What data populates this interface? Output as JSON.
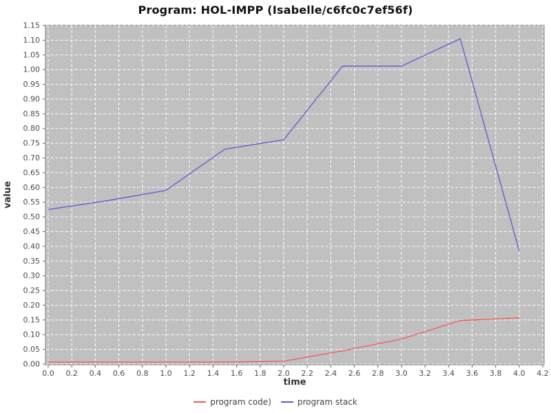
{
  "window": {
    "background": "#ffffff"
  },
  "chart_data": {
    "type": "line",
    "title": "Program: HOL-IMPP (Isabelle/c6fc0c7ef56f)",
    "xlabel": "time",
    "ylabel": "value",
    "xlim": [
      0.0,
      4.2
    ],
    "ylim": [
      0.0,
      1.15
    ],
    "grid": true,
    "legend_position": "bottom",
    "plot_background": "#c0c0c0",
    "grid_color": "#ffffff",
    "x_ticks": [
      0.0,
      0.2,
      0.4,
      0.6,
      0.8,
      1.0,
      1.2,
      1.4,
      1.6,
      1.8,
      2.0,
      2.2,
      2.4,
      2.6,
      2.8,
      3.0,
      3.2,
      3.4,
      3.6,
      3.8,
      4.0,
      4.2
    ],
    "x_tick_labels": [
      "0.0",
      "0.2",
      "0.4",
      "0.6",
      "0.8",
      "1.0",
      "1.2",
      "1.4",
      "1.6",
      "1.8",
      "2.0",
      "2.2",
      "2.4",
      "2.6",
      "2.8",
      "3.0",
      "3.2",
      "3.4",
      "3.6",
      "3.8",
      "4.0",
      "4.2"
    ],
    "y_ticks": [
      0.0,
      0.05,
      0.1,
      0.15,
      0.2,
      0.25,
      0.3,
      0.35,
      0.4,
      0.45,
      0.5,
      0.55,
      0.6,
      0.65,
      0.7,
      0.75,
      0.8,
      0.85,
      0.9,
      0.95,
      1.0,
      1.05,
      1.1,
      1.15
    ],
    "y_tick_labels": [
      "0.00",
      "0.05",
      "0.10",
      "0.15",
      "0.20",
      "0.25",
      "0.30",
      "0.35",
      "0.40",
      "0.45",
      "0.50",
      "0.55",
      "0.60",
      "0.65",
      "0.70",
      "0.75",
      "0.80",
      "0.85",
      "0.90",
      "0.95",
      "1.00",
      "1.05",
      "1.10",
      "1.15"
    ],
    "series": [
      {
        "name": "program code)",
        "color": "#f45750",
        "x": [
          0.0,
          0.5,
          1.0,
          1.5,
          2.0,
          2.5,
          3.0,
          3.5,
          4.0
        ],
        "y": [
          0.007,
          0.007,
          0.007,
          0.007,
          0.01,
          0.045,
          0.085,
          0.148,
          0.157
        ]
      },
      {
        "name": "program stack",
        "color": "#5a5ad2",
        "x": [
          0.0,
          0.5,
          1.0,
          1.5,
          2.0,
          2.5,
          3.0,
          3.5,
          4.0
        ],
        "y": [
          0.525,
          0.555,
          0.59,
          0.73,
          0.762,
          1.012,
          1.012,
          1.105,
          0.385
        ]
      }
    ]
  }
}
